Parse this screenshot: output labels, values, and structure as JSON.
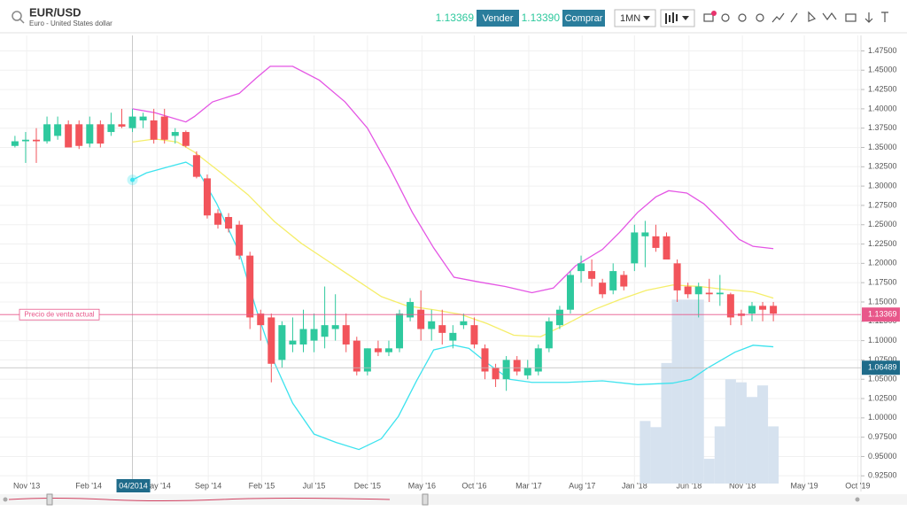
{
  "header": {
    "symbol": "EUR/USD",
    "description": "Euro - United States dollar",
    "sell_price": "1.13369",
    "sell_label": "Vender",
    "buy_price": "1.13390",
    "buy_label": "Comprar",
    "interval": "1MN"
  },
  "chart_data": {
    "type": "candlestick",
    "up_color": "#2ec99e",
    "down_color": "#f2545b",
    "grid": true,
    "xlim": [
      -1.4,
      79.2
    ],
    "ylim": [
      0.915,
      1.495
    ],
    "xticks": [
      {
        "value": 1.1,
        "label": "Nov '13"
      },
      {
        "value": 6.9,
        "label": "Feb '14"
      },
      {
        "value": 13.3,
        "label": "May '14"
      },
      {
        "value": 18.1,
        "label": "Sep '14"
      },
      {
        "value": 23.1,
        "label": "Feb '15"
      },
      {
        "value": 28,
        "label": "Jul '15"
      },
      {
        "value": 33,
        "label": "Dec '15"
      },
      {
        "value": 38.1,
        "label": "May '16"
      },
      {
        "value": 43,
        "label": "Oct '16"
      },
      {
        "value": 48.1,
        "label": "Mar '17"
      },
      {
        "value": 53.1,
        "label": "Aug '17"
      },
      {
        "value": 58,
        "label": "Jan '18"
      },
      {
        "value": 63.1,
        "label": "Jun '18"
      },
      {
        "value": 68.1,
        "label": "Nov '18"
      },
      {
        "value": 73.9,
        "label": "May '19"
      },
      {
        "value": 78.9,
        "label": "Oct '19"
      }
    ],
    "yticks": [
      {
        "value": 0.925,
        "label": "0.92500"
      },
      {
        "value": 0.95,
        "label": "0.95000"
      },
      {
        "value": 0.975,
        "label": "0.97500"
      },
      {
        "value": 1.0,
        "label": "1.00000"
      },
      {
        "value": 1.025,
        "label": "1.02500"
      },
      {
        "value": 1.05,
        "label": "1.05000"
      },
      {
        "value": 1.075,
        "label": "1.07500"
      },
      {
        "value": 1.1,
        "label": "1.10000"
      },
      {
        "value": 1.125,
        "label": "1.12500"
      },
      {
        "value": 1.15,
        "label": "1.15000"
      },
      {
        "value": 1.175,
        "label": "1.17500"
      },
      {
        "value": 1.2,
        "label": "1.20000"
      },
      {
        "value": 1.225,
        "label": "1.22500"
      },
      {
        "value": 1.25,
        "label": "1.25000"
      },
      {
        "value": 1.275,
        "label": "1.27500"
      },
      {
        "value": 1.3,
        "label": "1.30000"
      },
      {
        "value": 1.325,
        "label": "1.32500"
      },
      {
        "value": 1.35,
        "label": "1.35000"
      },
      {
        "value": 1.375,
        "label": "1.37500"
      },
      {
        "value": 1.4,
        "label": "1.40000"
      },
      {
        "value": 1.425,
        "label": "1.42500"
      },
      {
        "value": 1.45,
        "label": "1.45000"
      },
      {
        "value": 1.475,
        "label": "1.47500"
      }
    ],
    "x": [
      0,
      1,
      2,
      3,
      4,
      5,
      6,
      7,
      8,
      9,
      10,
      11,
      12,
      13,
      14,
      15,
      16,
      17,
      18,
      19,
      20,
      21,
      22,
      23,
      24,
      25,
      26,
      27,
      28,
      29,
      30,
      31,
      32,
      33,
      34,
      35,
      36,
      37,
      38,
      39,
      40,
      41,
      42,
      43,
      44,
      45,
      46,
      47,
      48,
      49,
      50,
      51,
      52,
      53,
      54,
      55,
      56,
      57,
      58,
      59,
      60,
      61,
      62,
      63,
      64,
      65,
      66,
      67,
      68,
      69,
      70,
      71
    ],
    "open": [
      1.352,
      1.358,
      1.36,
      1.358,
      1.365,
      1.38,
      1.38,
      1.355,
      1.38,
      1.37,
      1.38,
      1.375,
      1.385,
      1.385,
      1.39,
      1.365,
      1.37,
      1.34,
      1.31,
      1.265,
      1.26,
      1.25,
      1.21,
      1.135,
      1.13,
      1.075,
      1.095,
      1.095,
      1.1,
      1.105,
      1.115,
      1.12,
      1.1,
      1.06,
      1.09,
      1.085,
      1.09,
      1.13,
      1.14,
      1.115,
      1.12,
      1.1,
      1.12,
      1.12,
      1.09,
      1.065,
      1.05,
      1.075,
      1.055,
      1.06,
      1.09,
      1.12,
      1.14,
      1.19,
      1.19,
      1.175,
      1.165,
      1.185,
      1.2,
      1.235,
      1.235,
      1.235,
      1.2,
      1.17,
      1.16,
      1.162,
      1.16,
      1.16,
      1.135,
      1.135,
      1.145,
      1.145
    ],
    "high": [
      1.365,
      1.37,
      1.375,
      1.39,
      1.39,
      1.385,
      1.385,
      1.39,
      1.385,
      1.395,
      1.4,
      1.4,
      1.395,
      1.4,
      1.4,
      1.375,
      1.372,
      1.345,
      1.315,
      1.27,
      1.265,
      1.255,
      1.215,
      1.14,
      1.135,
      1.125,
      1.13,
      1.14,
      1.135,
      1.17,
      1.16,
      1.135,
      1.105,
      1.09,
      1.1,
      1.1,
      1.14,
      1.155,
      1.165,
      1.14,
      1.14,
      1.12,
      1.135,
      1.13,
      1.095,
      1.07,
      1.08,
      1.08,
      1.075,
      1.095,
      1.13,
      1.145,
      1.19,
      1.21,
      1.205,
      1.18,
      1.2,
      1.19,
      1.25,
      1.255,
      1.25,
      1.24,
      1.205,
      1.175,
      1.175,
      1.18,
      1.185,
      1.162,
      1.14,
      1.15,
      1.15,
      1.15
    ],
    "low": [
      1.35,
      1.33,
      1.33,
      1.355,
      1.36,
      1.35,
      1.348,
      1.35,
      1.35,
      1.365,
      1.375,
      1.37,
      1.375,
      1.355,
      1.355,
      1.355,
      1.35,
      1.31,
      1.258,
      1.245,
      1.24,
      1.205,
      1.115,
      1.1,
      1.046,
      1.065,
      1.085,
      1.085,
      1.085,
      1.09,
      1.1,
      1.085,
      1.055,
      1.055,
      1.08,
      1.08,
      1.085,
      1.125,
      1.1,
      1.1,
      1.095,
      1.09,
      1.115,
      1.09,
      1.05,
      1.04,
      1.035,
      1.055,
      1.05,
      1.055,
      1.085,
      1.115,
      1.135,
      1.175,
      1.17,
      1.155,
      1.16,
      1.165,
      1.19,
      1.195,
      1.215,
      1.205,
      1.15,
      1.155,
      1.13,
      1.15,
      1.145,
      1.12,
      1.12,
      1.125,
      1.125,
      1.125
    ],
    "close": [
      1.358,
      1.36,
      1.358,
      1.38,
      1.38,
      1.35,
      1.352,
      1.38,
      1.355,
      1.38,
      1.377,
      1.39,
      1.39,
      1.36,
      1.36,
      1.37,
      1.352,
      1.312,
      1.262,
      1.25,
      1.245,
      1.21,
      1.13,
      1.12,
      1.07,
      1.12,
      1.1,
      1.115,
      1.115,
      1.12,
      1.12,
      1.095,
      1.06,
      1.09,
      1.085,
      1.09,
      1.135,
      1.15,
      1.115,
      1.125,
      1.11,
      1.11,
      1.125,
      1.095,
      1.06,
      1.05,
      1.075,
      1.06,
      1.065,
      1.09,
      1.125,
      1.14,
      1.185,
      1.2,
      1.18,
      1.16,
      1.19,
      1.17,
      1.24,
      1.24,
      1.22,
      1.205,
      1.165,
      1.16,
      1.17,
      1.16,
      1.162,
      1.13,
      1.132,
      1.145,
      1.14,
      1.135
    ],
    "lines": [
      {
        "color": "#e455e4",
        "x": [
          11.0,
          13.1,
          16.0,
          16.8,
          18.5,
          21.0,
          22.6,
          23.9,
          26.0,
          28.5,
          30.9,
          33.0,
          35.1,
          37.2,
          39.2,
          41.1,
          43.4,
          45.9,
          48.4,
          50.4,
          52.5,
          55.0,
          56.6,
          58.3,
          60.0,
          61.2,
          62.9,
          64.5,
          66.2,
          67.8,
          69.1,
          71.0
        ],
        "values": [
          1.4,
          1.395,
          1.383,
          1.39,
          1.409,
          1.42,
          1.44,
          1.455,
          1.455,
          1.437,
          1.409,
          1.375,
          1.323,
          1.266,
          1.22,
          1.182,
          1.176,
          1.17,
          1.162,
          1.168,
          1.197,
          1.218,
          1.24,
          1.266,
          1.286,
          1.294,
          1.291,
          1.277,
          1.254,
          1.231,
          1.222,
          1.219
        ]
      },
      {
        "color": "#f5ee6a",
        "x": [
          11.0,
          13.1,
          15.2,
          16.8,
          19.3,
          21.8,
          24.3,
          26.8,
          29.3,
          31.8,
          34.3,
          36.7,
          39.2,
          41.7,
          44.2,
          46.7,
          49.2,
          51.7,
          54.2,
          56.6,
          59.1,
          61.6,
          64.1,
          66.6,
          69.1,
          71.0
        ],
        "values": [
          1.357,
          1.361,
          1.357,
          1.344,
          1.317,
          1.289,
          1.254,
          1.226,
          1.203,
          1.18,
          1.157,
          1.145,
          1.14,
          1.134,
          1.122,
          1.107,
          1.105,
          1.122,
          1.14,
          1.153,
          1.165,
          1.172,
          1.17,
          1.166,
          1.163,
          1.155
        ]
      },
      {
        "color": "#3de3ee",
        "x": [
          11.0,
          12.3,
          14.4,
          16.0,
          17.0,
          18.9,
          21.0,
          22.6,
          24.3,
          26.0,
          28.0,
          30.1,
          32.2,
          34.3,
          35.9,
          37.6,
          39.2,
          41.1,
          42.5,
          44.2,
          46.3,
          48.4,
          51.7,
          55.0,
          58.3,
          61.6,
          63.3,
          64.9,
          67.4,
          69.1,
          71.0
        ],
        "values": [
          1.308,
          1.317,
          1.325,
          1.331,
          1.323,
          1.277,
          1.214,
          1.14,
          1.071,
          1.019,
          0.979,
          0.968,
          0.959,
          0.973,
          1.002,
          1.048,
          1.088,
          1.094,
          1.09,
          1.071,
          1.05,
          1.046,
          1.046,
          1.048,
          1.043,
          1.045,
          1.05,
          1.065,
          1.085,
          1.094,
          1.092
        ]
      }
    ],
    "histogram": {
      "color": "#d6e2ef",
      "x": [
        59,
        60,
        61,
        62,
        63,
        64,
        65,
        66,
        67,
        68,
        69,
        70,
        71
      ],
      "values": [
        0.996,
        0.988,
        1.071,
        1.153,
        1.153,
        1.153,
        0.947,
        0.989,
        1.05,
        1.046,
        1.027,
        1.042,
        0.989
      ]
    },
    "price_line": {
      "label": "Precio de venta actual",
      "value": 1.13369,
      "color": "#e8578a"
    },
    "crosshair": {
      "x": 11,
      "x_label": "04/2014",
      "y": 1.06489,
      "color": "#1f6b8a"
    }
  }
}
